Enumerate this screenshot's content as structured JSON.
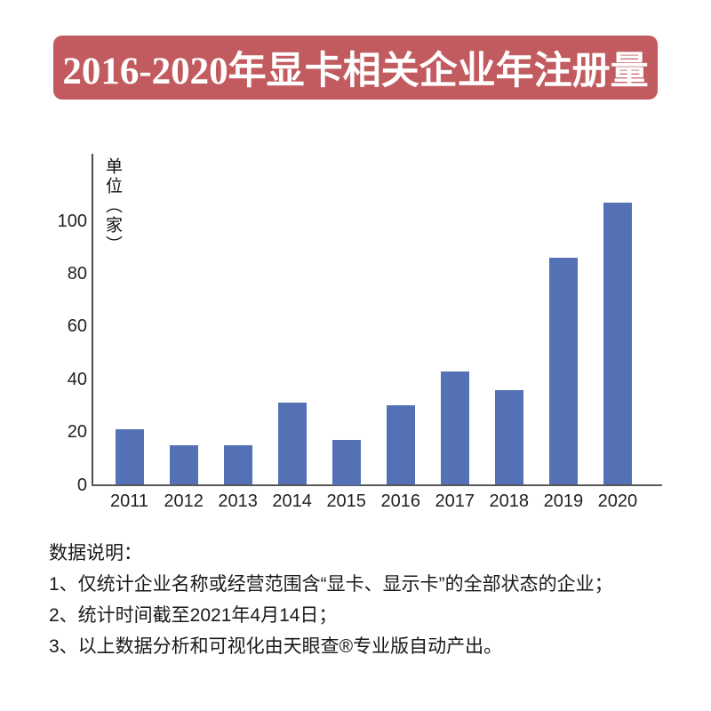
{
  "banner": {
    "title": "2016-2020年显卡相关企业年注册量",
    "bg_color": "#c25b5f",
    "text_color": "#ffffff"
  },
  "chart_data": {
    "type": "bar",
    "title": "2016-2020年显卡相关企业年注册量",
    "unit_label": "单位（家）",
    "categories": [
      "2011",
      "2012",
      "2013",
      "2014",
      "2015",
      "2016",
      "2017",
      "2018",
      "2019",
      "2020"
    ],
    "values": [
      21,
      15,
      15,
      31,
      17,
      30,
      43,
      36,
      86,
      107
    ],
    "yticks": [
      0,
      20,
      40,
      60,
      80,
      100
    ],
    "ylim": [
      0,
      125
    ],
    "xlabel": "",
    "ylabel": "单位（家）",
    "grid": false,
    "legend": "none",
    "bar_color": "#5571b5",
    "axis_color": "#4d4d4d"
  },
  "notes": {
    "heading": "数据说明：",
    "items": [
      "1、仅统计企业名称或经营范围含“显卡、显示卡”的全部状态的企业；",
      "2、统计时间截至2021年4月14日；",
      "3、以上数据分析和可视化由天眼查®专业版自动产出。"
    ]
  }
}
